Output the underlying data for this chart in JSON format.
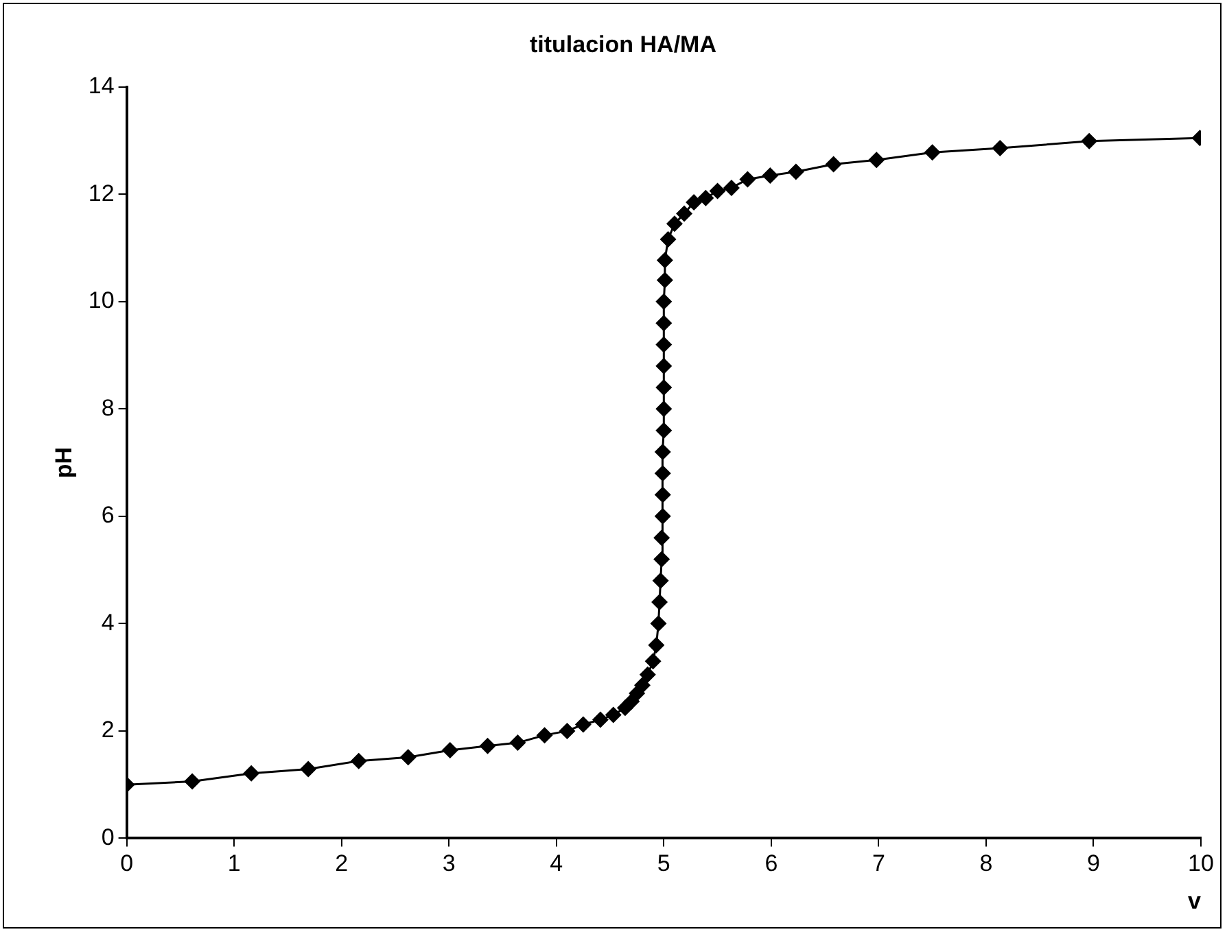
{
  "chart_data": {
    "type": "line",
    "title": "titulacion HA/MA",
    "xlabel": "v",
    "ylabel": "pH",
    "xlim": [
      0,
      10
    ],
    "xticks": [
      0,
      1,
      2,
      3,
      4,
      5,
      6,
      7,
      8,
      9,
      10
    ],
    "ylim": [
      0,
      14
    ],
    "yticks": [
      0,
      2,
      4,
      6,
      8,
      10,
      12,
      14
    ],
    "grid": false,
    "legend": false,
    "marker": "diamond",
    "line_style": "solid",
    "series": [
      {
        "color": "#000000",
        "x": [
          0,
          0.61,
          1.16,
          1.69,
          2.16,
          2.62,
          3.01,
          3.36,
          3.64,
          3.89,
          4.1,
          4.25,
          4.41,
          4.53,
          4.64,
          4.7,
          4.75,
          4.8,
          4.85,
          4.9,
          4.93,
          4.95,
          4.96,
          4.97,
          4.98,
          4.98,
          4.99,
          4.99,
          4.99,
          4.99,
          5,
          5,
          5,
          5,
          5,
          5,
          5,
          5.01,
          5.01,
          5.04,
          5.1,
          5.19,
          5.28,
          5.39,
          5.5,
          5.63,
          5.78,
          5.99,
          6.23,
          6.58,
          6.98,
          7.5,
          8.13,
          8.96,
          9.99
        ],
        "values": [
          1,
          1.06,
          1.21,
          1.29,
          1.44,
          1.51,
          1.64,
          1.72,
          1.78,
          1.92,
          2,
          2.12,
          2.21,
          2.3,
          2.43,
          2.55,
          2.7,
          2.85,
          3.05,
          3.3,
          3.6,
          4,
          4.4,
          4.8,
          5.2,
          5.6,
          6,
          6.4,
          6.8,
          7.2,
          7.6,
          8,
          8.4,
          8.8,
          9.2,
          9.6,
          10,
          10.4,
          10.77,
          11.16,
          11.45,
          11.64,
          11.85,
          11.93,
          12.06,
          12.12,
          12.28,
          12.35,
          12.42,
          12.56,
          12.64,
          12.78,
          12.86,
          12.99,
          13.05
        ]
      }
    ]
  }
}
